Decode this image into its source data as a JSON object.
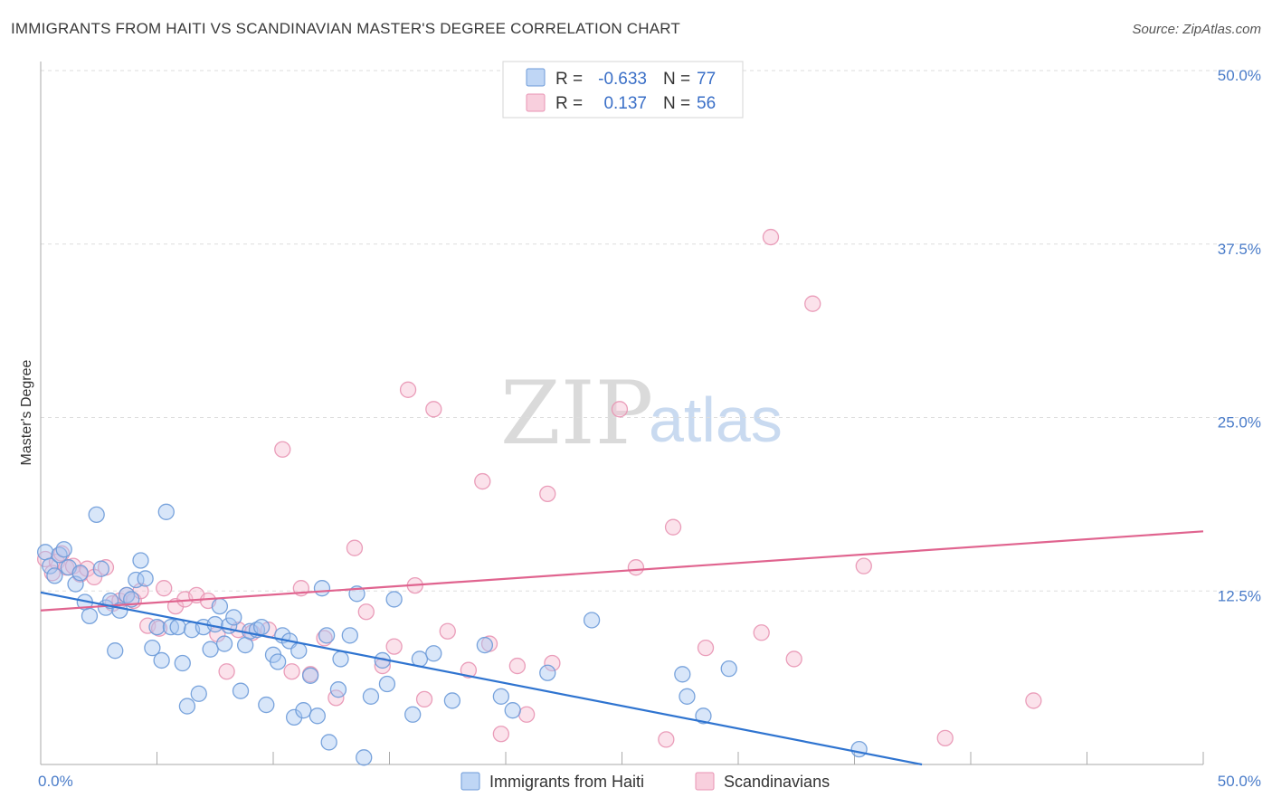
{
  "title": "IMMIGRANTS FROM HAITI VS SCANDINAVIAN MASTER'S DEGREE CORRELATION CHART",
  "source": "Source: ZipAtlas.com",
  "watermark": {
    "zip": "ZIP",
    "atlas": "atlas"
  },
  "colors": {
    "haiti_fill": "#a9c8f2",
    "haiti_stroke": "#6c9ad8",
    "haiti_line": "#2f74d0",
    "scand_fill": "#f6bfd2",
    "scand_stroke": "#e893b3",
    "scand_line": "#e0648f",
    "grid": "#dddddd",
    "label": "#4a7cc9"
  },
  "legend": {
    "rows": [
      {
        "r_label": "R =",
        "r_value": "-0.633",
        "n_label": "N =",
        "n_value": "77"
      },
      {
        "r_label": "R =",
        "r_value": "0.137",
        "n_label": "N =",
        "n_value": "56"
      }
    ]
  },
  "chart_data": {
    "type": "scatter",
    "xlabel": "",
    "ylabel": "Master's Degree",
    "xlim": [
      0,
      50
    ],
    "ylim": [
      0,
      50
    ],
    "x_tick_labels": [
      "0.0%",
      "50.0%"
    ],
    "y_ticks": [
      12.5,
      25.0,
      37.5,
      50.0
    ],
    "y_tick_labels": [
      "12.5%",
      "25.0%",
      "37.5%",
      "50.0%"
    ],
    "legend_position": "bottom-center",
    "series": [
      {
        "name": "Immigrants from Haiti",
        "r": -0.633,
        "n": 77,
        "trend": {
          "x": [
            0,
            37.9
          ],
          "y": [
            12.4,
            0
          ]
        },
        "points": [
          [
            0.2,
            15.3
          ],
          [
            0.4,
            14.3
          ],
          [
            0.6,
            13.6
          ],
          [
            0.8,
            15.1
          ],
          [
            1.0,
            15.5
          ],
          [
            1.2,
            14.2
          ],
          [
            1.5,
            13.0
          ],
          [
            1.7,
            13.8
          ],
          [
            1.9,
            11.7
          ],
          [
            2.1,
            10.7
          ],
          [
            2.4,
            18.0
          ],
          [
            2.6,
            14.1
          ],
          [
            2.8,
            11.3
          ],
          [
            3.0,
            11.8
          ],
          [
            3.2,
            8.2
          ],
          [
            3.4,
            11.1
          ],
          [
            3.7,
            12.2
          ],
          [
            3.9,
            11.9
          ],
          [
            4.1,
            13.3
          ],
          [
            4.3,
            14.7
          ],
          [
            4.5,
            13.4
          ],
          [
            4.8,
            8.4
          ],
          [
            5.0,
            9.9
          ],
          [
            5.2,
            7.5
          ],
          [
            5.4,
            18.2
          ],
          [
            5.6,
            9.9
          ],
          [
            5.9,
            9.9
          ],
          [
            6.1,
            7.3
          ],
          [
            6.3,
            4.2
          ],
          [
            6.5,
            9.7
          ],
          [
            6.8,
            5.1
          ],
          [
            7.0,
            9.9
          ],
          [
            7.3,
            8.3
          ],
          [
            7.5,
            10.1
          ],
          [
            7.7,
            11.4
          ],
          [
            7.9,
            8.7
          ],
          [
            8.1,
            10.0
          ],
          [
            8.3,
            10.6
          ],
          [
            8.6,
            5.3
          ],
          [
            8.8,
            8.6
          ],
          [
            9.0,
            9.6
          ],
          [
            9.3,
            9.7
          ],
          [
            9.5,
            9.9
          ],
          [
            9.7,
            4.3
          ],
          [
            10.0,
            7.9
          ],
          [
            10.2,
            7.4
          ],
          [
            10.4,
            9.3
          ],
          [
            10.7,
            8.9
          ],
          [
            10.9,
            3.4
          ],
          [
            11.1,
            8.2
          ],
          [
            11.3,
            3.9
          ],
          [
            11.6,
            6.4
          ],
          [
            11.9,
            3.5
          ],
          [
            12.1,
            12.7
          ],
          [
            12.3,
            9.3
          ],
          [
            12.4,
            1.6
          ],
          [
            12.8,
            5.4
          ],
          [
            12.9,
            7.6
          ],
          [
            13.3,
            9.3
          ],
          [
            13.6,
            12.3
          ],
          [
            13.9,
            0.5
          ],
          [
            14.2,
            4.9
          ],
          [
            14.7,
            7.5
          ],
          [
            14.9,
            5.8
          ],
          [
            15.2,
            11.9
          ],
          [
            16.0,
            3.6
          ],
          [
            16.3,
            7.6
          ],
          [
            16.9,
            8.0
          ],
          [
            17.7,
            4.6
          ],
          [
            19.1,
            8.6
          ],
          [
            19.8,
            4.9
          ],
          [
            20.3,
            3.9
          ],
          [
            21.8,
            6.6
          ],
          [
            23.7,
            10.4
          ],
          [
            27.6,
            6.5
          ],
          [
            27.8,
            4.9
          ],
          [
            28.5,
            3.5
          ],
          [
            29.6,
            6.9
          ],
          [
            35.2,
            1.1
          ]
        ]
      },
      {
        "name": "Scandinavians",
        "r": 0.137,
        "n": 56,
        "trend": {
          "x": [
            0,
            50
          ],
          "y": [
            11.1,
            16.8
          ]
        },
        "points": [
          [
            0.2,
            14.8
          ],
          [
            0.5,
            13.8
          ],
          [
            0.7,
            14.6
          ],
          [
            0.9,
            15.2
          ],
          [
            1.1,
            14.2
          ],
          [
            1.4,
            14.3
          ],
          [
            1.7,
            13.7
          ],
          [
            2.0,
            14.1
          ],
          [
            2.3,
            13.5
          ],
          [
            2.8,
            14.2
          ],
          [
            3.1,
            11.6
          ],
          [
            3.4,
            11.8
          ],
          [
            3.7,
            12.2
          ],
          [
            4.0,
            11.8
          ],
          [
            4.3,
            12.5
          ],
          [
            4.6,
            10.0
          ],
          [
            5.1,
            9.8
          ],
          [
            5.3,
            12.7
          ],
          [
            5.8,
            11.4
          ],
          [
            6.2,
            11.9
          ],
          [
            6.7,
            12.2
          ],
          [
            7.2,
            11.8
          ],
          [
            7.6,
            9.4
          ],
          [
            8.0,
            6.7
          ],
          [
            8.5,
            9.7
          ],
          [
            9.1,
            9.5
          ],
          [
            9.8,
            9.7
          ],
          [
            10.4,
            22.7
          ],
          [
            10.8,
            6.7
          ],
          [
            11.2,
            12.7
          ],
          [
            11.6,
            6.5
          ],
          [
            12.2,
            9.1
          ],
          [
            12.7,
            4.8
          ],
          [
            13.5,
            15.6
          ],
          [
            14.0,
            11.0
          ],
          [
            14.7,
            7.1
          ],
          [
            15.2,
            8.5
          ],
          [
            15.8,
            27.0
          ],
          [
            16.1,
            12.9
          ],
          [
            16.5,
            4.7
          ],
          [
            16.9,
            25.6
          ],
          [
            17.5,
            9.6
          ],
          [
            18.4,
            6.8
          ],
          [
            19.0,
            20.4
          ],
          [
            19.3,
            8.7
          ],
          [
            19.8,
            2.2
          ],
          [
            20.5,
            7.1
          ],
          [
            20.9,
            3.6
          ],
          [
            21.8,
            19.5
          ],
          [
            22.0,
            7.3
          ],
          [
            24.9,
            25.6
          ],
          [
            25.6,
            14.2
          ],
          [
            26.9,
            1.8
          ],
          [
            27.2,
            17.1
          ],
          [
            28.6,
            8.4
          ],
          [
            31.0,
            9.5
          ],
          [
            31.4,
            38.0
          ],
          [
            32.4,
            7.6
          ],
          [
            33.2,
            33.2
          ],
          [
            35.4,
            14.3
          ],
          [
            38.9,
            1.9
          ],
          [
            42.7,
            4.6
          ]
        ]
      }
    ]
  }
}
